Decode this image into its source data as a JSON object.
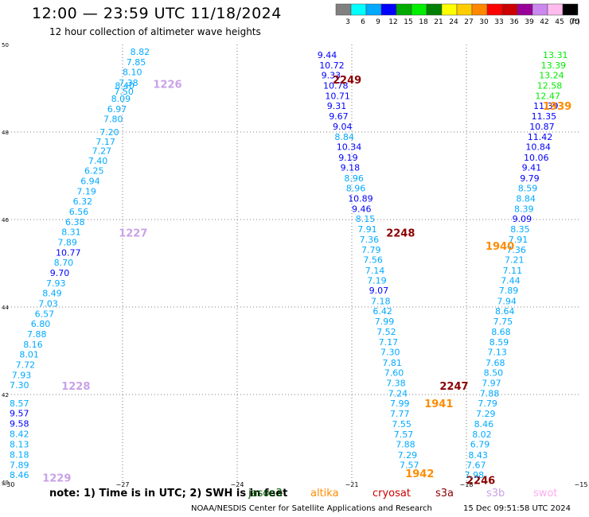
{
  "header": {
    "title": "12:00 — 23:59 UTC 11/18/2024",
    "subtitle": "12 hour collection of altimeter wave heights"
  },
  "colorbar": {
    "colors": [
      "#808080",
      "#00ffff",
      "#00aaff",
      "#0000ff",
      "#00aa00",
      "#00ee00",
      "#008000",
      "#ffff00",
      "#ffcc00",
      "#ff8800",
      "#ff0000",
      "#cc0000",
      "#990099",
      "#cc88ee",
      "#ffbbee",
      "#000000"
    ],
    "labels": [
      "3",
      "6",
      "9",
      "12",
      "15",
      "18",
      "21",
      "24",
      "27",
      "30",
      "33",
      "36",
      "39",
      "42",
      "45",
      "70"
    ],
    "unit": "(ft)"
  },
  "footer": {
    "note": "note:  1) Time is in UTC;  2) SWH is in feet",
    "credit": "NOAA/NESDIS Center for Satellite Applications and Research",
    "timestamp": "15 Dec 09:51:58 UTC 2024",
    "satellites": [
      {
        "name": "jason3",
        "color": "#006400"
      },
      {
        "name": "altika",
        "color": "#ff8c00"
      },
      {
        "name": "cryosat",
        "color": "#cc0000"
      },
      {
        "name": "s3a",
        "color": "#8b0000"
      },
      {
        "name": "s3b",
        "color": "#c8a2e8"
      },
      {
        "name": "swot",
        "color": "#ffaaee"
      }
    ]
  },
  "chart_data": {
    "type": "scatter",
    "title": "12:00 — 23:59 UTC 11/18/2024",
    "subtitle": "12 hour collection of altimeter wave heights",
    "xlabel": "",
    "ylabel": "",
    "xlim": [
      -30,
      -15
    ],
    "ylim": [
      40,
      50
    ],
    "x_ticks": [
      -30,
      -27,
      -24,
      -21,
      -18,
      -15
    ],
    "y_ticks": [
      40,
      42,
      44,
      46,
      48,
      50
    ],
    "x_tick_labels": [
      "−30",
      "−27",
      "−24",
      "−21",
      "−18",
      "−15"
    ],
    "y_tick_labels": [
      "40",
      "42",
      "44",
      "46",
      "48",
      "50"
    ],
    "grid": true,
    "series": [
      {
        "name": "s3b",
        "labels": [
          {
            "text": "1226",
            "lon": -26.2,
            "lat": 49.1
          },
          {
            "text": "1227",
            "lon": -27.1,
            "lat": 45.7
          },
          {
            "text": "1228",
            "lon": -28.6,
            "lat": 42.2
          },
          {
            "text": "1229",
            "lon": -29.1,
            "lat": 40.1
          }
        ],
        "points": [
          {
            "lon": -26.8,
            "lat": 49.84,
            "value": 8.82
          },
          {
            "lon": -26.9,
            "lat": 49.6,
            "value": 7.85
          },
          {
            "lon": -27.0,
            "lat": 49.37,
            "value": 8.1
          },
          {
            "lon": -27.1,
            "lat": 49.13,
            "value": 7.38
          },
          {
            "lon": -27.2,
            "lat": 49.06,
            "value": 8.4
          },
          {
            "lon": -27.22,
            "lat": 48.93,
            "value": 7.5
          },
          {
            "lon": -27.3,
            "lat": 48.76,
            "value": 8.09
          },
          {
            "lon": -27.4,
            "lat": 48.53,
            "value": 6.97
          },
          {
            "lon": -27.5,
            "lat": 48.3,
            "value": 7.8
          },
          {
            "lon": -27.6,
            "lat": 48.0,
            "value": 7.2
          },
          {
            "lon": -27.7,
            "lat": 47.78,
            "value": 7.17
          },
          {
            "lon": -27.8,
            "lat": 47.57,
            "value": 7.27
          },
          {
            "lon": -27.9,
            "lat": 47.35,
            "value": 7.4
          },
          {
            "lon": -28.0,
            "lat": 47.12,
            "value": 6.25
          },
          {
            "lon": -28.1,
            "lat": 46.88,
            "value": 6.94
          },
          {
            "lon": -28.2,
            "lat": 46.65,
            "value": 7.19
          },
          {
            "lon": -28.3,
            "lat": 46.42,
            "value": 6.32
          },
          {
            "lon": -28.4,
            "lat": 46.18,
            "value": 6.56
          },
          {
            "lon": -28.5,
            "lat": 45.95,
            "value": 6.38
          },
          {
            "lon": -28.6,
            "lat": 45.72,
            "value": 8.31
          },
          {
            "lon": -28.7,
            "lat": 45.48,
            "value": 7.89
          },
          {
            "lon": -28.75,
            "lat": 45.25,
            "value": 10.77
          },
          {
            "lon": -28.8,
            "lat": 45.02,
            "value": 8.7
          },
          {
            "lon": -28.9,
            "lat": 44.78,
            "value": 9.7
          },
          {
            "lon": -29.0,
            "lat": 44.55,
            "value": 7.93
          },
          {
            "lon": -29.1,
            "lat": 44.32,
            "value": 8.49
          },
          {
            "lon": -29.2,
            "lat": 44.08,
            "value": 7.03
          },
          {
            "lon": -29.3,
            "lat": 43.85,
            "value": 6.57
          },
          {
            "lon": -29.4,
            "lat": 43.62,
            "value": 6.8
          },
          {
            "lon": -29.5,
            "lat": 43.38,
            "value": 7.88
          },
          {
            "lon": -29.6,
            "lat": 43.15,
            "value": 8.16
          },
          {
            "lon": -29.7,
            "lat": 42.92,
            "value": 8.01
          },
          {
            "lon": -29.8,
            "lat": 42.68,
            "value": 7.72
          },
          {
            "lon": -29.9,
            "lat": 42.45,
            "value": 7.93
          },
          {
            "lon": -30.0,
            "lat": 42.22,
            "value": 7.3
          },
          {
            "lon": -30.1,
            "lat": 41.8,
            "value": 8.57
          },
          {
            "lon": -30.2,
            "lat": 41.57,
            "value": 9.57
          },
          {
            "lon": -30.3,
            "lat": 41.34,
            "value": 9.58
          },
          {
            "lon": -30.4,
            "lat": 41.1,
            "value": 8.42
          },
          {
            "lon": -30.5,
            "lat": 40.86,
            "value": 8.13
          },
          {
            "lon": -30.6,
            "lat": 40.63,
            "value": 8.18
          },
          {
            "lon": -30.7,
            "lat": 40.39,
            "value": 7.89
          },
          {
            "lon": -30.8,
            "lat": 40.16,
            "value": 8.46
          }
        ]
      },
      {
        "name": "s3a",
        "labels": [
          {
            "text": "2249",
            "lon": -21.5,
            "lat": 49.2
          },
          {
            "text": "2248",
            "lon": -20.1,
            "lat": 45.7
          },
          {
            "text": "2247",
            "lon": -18.7,
            "lat": 42.2
          },
          {
            "text": "2246",
            "lon": -18.0,
            "lat": 40.05
          }
        ],
        "points": [
          {
            "lon": -21.9,
            "lat": 49.76,
            "value": 9.44
          },
          {
            "lon": -21.85,
            "lat": 49.53,
            "value": 10.72
          },
          {
            "lon": -21.8,
            "lat": 49.3,
            "value": 9.33
          },
          {
            "lon": -21.75,
            "lat": 49.06,
            "value": 10.78
          },
          {
            "lon": -21.7,
            "lat": 48.83,
            "value": 10.71
          },
          {
            "lon": -21.65,
            "lat": 48.6,
            "value": 9.31
          },
          {
            "lon": -21.6,
            "lat": 48.36,
            "value": 9.67
          },
          {
            "lon": -21.5,
            "lat": 48.13,
            "value": 9.04
          },
          {
            "lon": -21.45,
            "lat": 47.89,
            "value": 8.84
          },
          {
            "lon": -21.4,
            "lat": 47.66,
            "value": 10.34
          },
          {
            "lon": -21.35,
            "lat": 47.42,
            "value": 9.19
          },
          {
            "lon": -21.3,
            "lat": 47.19,
            "value": 9.18
          },
          {
            "lon": -21.2,
            "lat": 46.95,
            "value": 8.96
          },
          {
            "lon": -21.15,
            "lat": 46.72,
            "value": 8.96
          },
          {
            "lon": -21.1,
            "lat": 46.48,
            "value": 10.89
          },
          {
            "lon": -21.0,
            "lat": 46.25,
            "value": 9.46
          },
          {
            "lon": -20.9,
            "lat": 46.02,
            "value": 8.15
          },
          {
            "lon": -20.85,
            "lat": 45.78,
            "value": 7.91
          },
          {
            "lon": -20.8,
            "lat": 45.55,
            "value": 7.36
          },
          {
            "lon": -20.75,
            "lat": 45.31,
            "value": 7.79
          },
          {
            "lon": -20.7,
            "lat": 45.08,
            "value": 7.56
          },
          {
            "lon": -20.65,
            "lat": 44.84,
            "value": 7.14
          },
          {
            "lon": -20.6,
            "lat": 44.61,
            "value": 7.19
          },
          {
            "lon": -20.55,
            "lat": 44.38,
            "value": 9.07
          },
          {
            "lon": -20.5,
            "lat": 44.14,
            "value": 7.18
          },
          {
            "lon": -20.45,
            "lat": 43.91,
            "value": 6.42
          },
          {
            "lon": -20.4,
            "lat": 43.67,
            "value": 7.99
          },
          {
            "lon": -20.35,
            "lat": 43.44,
            "value": 7.52
          },
          {
            "lon": -20.3,
            "lat": 43.2,
            "value": 7.17
          },
          {
            "lon": -20.25,
            "lat": 42.97,
            "value": 7.3
          },
          {
            "lon": -20.2,
            "lat": 42.73,
            "value": 7.81
          },
          {
            "lon": -20.15,
            "lat": 42.5,
            "value": 7.6
          },
          {
            "lon": -20.1,
            "lat": 42.26,
            "value": 7.38
          },
          {
            "lon": -20.05,
            "lat": 42.03,
            "value": 7.24
          },
          {
            "lon": -20.0,
            "lat": 41.8,
            "value": 7.99
          },
          {
            "lon": -20.0,
            "lat": 41.56,
            "value": 7.77
          },
          {
            "lon": -19.95,
            "lat": 41.33,
            "value": 7.55
          },
          {
            "lon": -19.9,
            "lat": 41.09,
            "value": 7.57
          },
          {
            "lon": -19.85,
            "lat": 40.86,
            "value": 7.88
          },
          {
            "lon": -19.8,
            "lat": 40.62,
            "value": 7.29
          },
          {
            "lon": -19.75,
            "lat": 40.39,
            "value": 7.57
          }
        ]
      },
      {
        "name": "altika",
        "labels": [
          {
            "text": "1939",
            "lon": -16.0,
            "lat": 48.6
          },
          {
            "text": "1940",
            "lon": -17.5,
            "lat": 45.4
          },
          {
            "text": "1941",
            "lon": -19.1,
            "lat": 41.8
          },
          {
            "text": "1942",
            "lon": -19.6,
            "lat": 40.2
          }
        ],
        "points": [
          {
            "lon": -16.0,
            "lat": 49.76,
            "value": 13.31
          },
          {
            "lon": -16.05,
            "lat": 49.53,
            "value": 13.39
          },
          {
            "lon": -16.1,
            "lat": 49.3,
            "value": 13.24
          },
          {
            "lon": -16.15,
            "lat": 49.06,
            "value": 12.58
          },
          {
            "lon": -16.2,
            "lat": 48.83,
            "value": 12.47
          },
          {
            "lon": -16.25,
            "lat": 48.6,
            "value": 11.39
          },
          {
            "lon": -16.3,
            "lat": 48.36,
            "value": 11.35
          },
          {
            "lon": -16.35,
            "lat": 48.13,
            "value": 10.87
          },
          {
            "lon": -16.4,
            "lat": 47.89,
            "value": 11.42
          },
          {
            "lon": -16.45,
            "lat": 47.66,
            "value": 10.84
          },
          {
            "lon": -16.5,
            "lat": 47.42,
            "value": 10.06
          },
          {
            "lon": -16.55,
            "lat": 47.19,
            "value": 9.41
          },
          {
            "lon": -16.6,
            "lat": 46.95,
            "value": 9.79
          },
          {
            "lon": -16.65,
            "lat": 46.72,
            "value": 8.59
          },
          {
            "lon": -16.7,
            "lat": 46.48,
            "value": 8.84
          },
          {
            "lon": -16.75,
            "lat": 46.25,
            "value": 8.39
          },
          {
            "lon": -16.8,
            "lat": 46.02,
            "value": 9.09
          },
          {
            "lon": -16.85,
            "lat": 45.78,
            "value": 8.35
          },
          {
            "lon": -16.9,
            "lat": 45.55,
            "value": 7.91
          },
          {
            "lon": -16.95,
            "lat": 45.31,
            "value": 7.36
          },
          {
            "lon": -17.0,
            "lat": 45.08,
            "value": 7.21
          },
          {
            "lon": -17.05,
            "lat": 44.84,
            "value": 7.11
          },
          {
            "lon": -17.1,
            "lat": 44.61,
            "value": 7.44
          },
          {
            "lon": -17.15,
            "lat": 44.38,
            "value": 7.89
          },
          {
            "lon": -17.2,
            "lat": 44.14,
            "value": 7.94
          },
          {
            "lon": -17.25,
            "lat": 43.91,
            "value": 8.64
          },
          {
            "lon": -17.3,
            "lat": 43.67,
            "value": 7.75
          },
          {
            "lon": -17.35,
            "lat": 43.44,
            "value": 8.68
          },
          {
            "lon": -17.4,
            "lat": 43.2,
            "value": 8.59
          },
          {
            "lon": -17.45,
            "lat": 42.97,
            "value": 7.13
          },
          {
            "lon": -17.5,
            "lat": 42.73,
            "value": 7.68
          },
          {
            "lon": -17.55,
            "lat": 42.5,
            "value": 8.5
          },
          {
            "lon": -17.6,
            "lat": 42.26,
            "value": 7.97
          },
          {
            "lon": -17.65,
            "lat": 42.03,
            "value": 7.88
          },
          {
            "lon": -17.7,
            "lat": 41.8,
            "value": 7.79
          },
          {
            "lon": -17.75,
            "lat": 41.56,
            "value": 7.29
          },
          {
            "lon": -17.8,
            "lat": 41.33,
            "value": 8.46
          },
          {
            "lon": -17.85,
            "lat": 41.09,
            "value": 8.02
          },
          {
            "lon": -17.9,
            "lat": 40.86,
            "value": 6.79
          },
          {
            "lon": -17.95,
            "lat": 40.62,
            "value": 8.43
          },
          {
            "lon": -18.0,
            "lat": 40.39,
            "value": 7.67
          },
          {
            "lon": -18.05,
            "lat": 40.16,
            "value": 7.98
          }
        ]
      }
    ]
  }
}
